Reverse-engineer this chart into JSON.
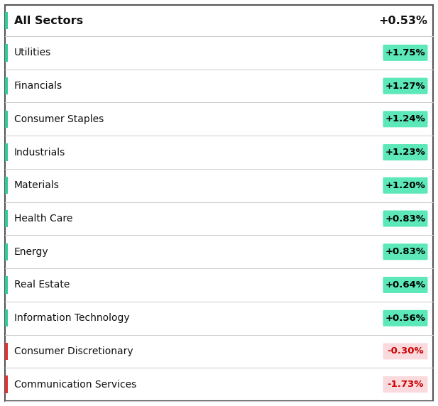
{
  "header_label": "All Sectors",
  "header_value": "+0.53%",
  "rows": [
    {
      "sector": "Utilities",
      "value": "+1.75%",
      "positive": true
    },
    {
      "sector": "Financials",
      "value": "+1.27%",
      "positive": true
    },
    {
      "sector": "Consumer Staples",
      "value": "+1.24%",
      "positive": true
    },
    {
      "sector": "Industrials",
      "value": "+1.23%",
      "positive": true
    },
    {
      "sector": "Materials",
      "value": "+1.20%",
      "positive": true
    },
    {
      "sector": "Health Care",
      "value": "+0.83%",
      "positive": true
    },
    {
      "sector": "Energy",
      "value": "+0.83%",
      "positive": true
    },
    {
      "sector": "Real Estate",
      "value": "+0.64%",
      "positive": true
    },
    {
      "sector": "Information Technology",
      "value": "+0.56%",
      "positive": true
    },
    {
      "sector": "Consumer Discretionary",
      "value": "-0.30%",
      "positive": false
    },
    {
      "sector": "Communication Services",
      "value": "-1.73%",
      "positive": false
    }
  ],
  "positive_badge_bg": "#5ce8b8",
  "negative_badge_bg": "#fadadd",
  "positive_badge_text": "#000000",
  "negative_badge_text": "#cc0000",
  "positive_side_bar": "#2ecc9a",
  "negative_side_bar": "#e03030",
  "text_color": "#111111",
  "separator_color": "#cccccc",
  "border_color": "#555555",
  "font_size_header": 11.5,
  "font_size_row": 10,
  "font_size_badge": 9.5
}
